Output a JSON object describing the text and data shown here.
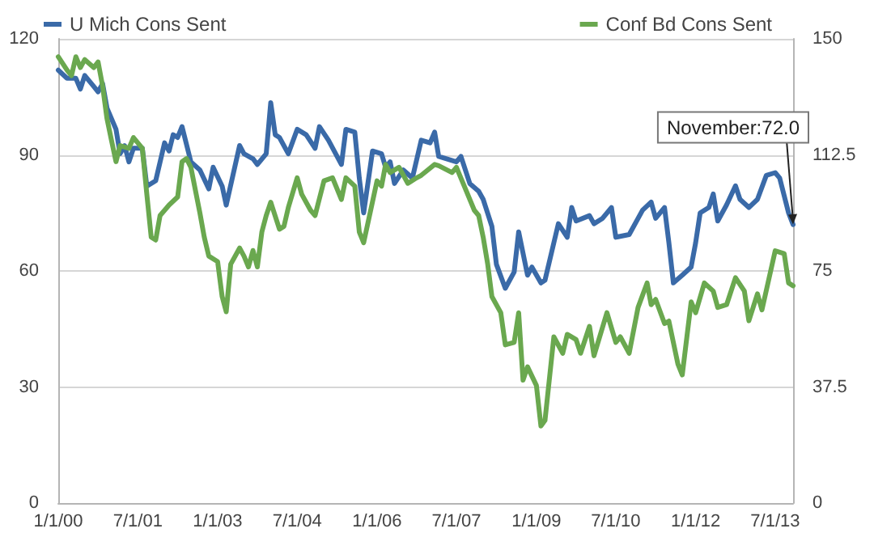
{
  "chart_data": {
    "type": "line",
    "xlim": [
      "2000-01",
      "2013-11"
    ],
    "xticks": [
      {
        "value": "2000-01-01",
        "label": "1/1/00"
      },
      {
        "value": "2001-07-01",
        "label": "7/1/01"
      },
      {
        "value": "2003-01-01",
        "label": "1/1/03"
      },
      {
        "value": "2004-07-01",
        "label": "7/1/04"
      },
      {
        "value": "2006-01-01",
        "label": "1/1/06"
      },
      {
        "value": "2007-07-01",
        "label": "7/1/07"
      },
      {
        "value": "2009-01-01",
        "label": "1/1/09"
      },
      {
        "value": "2010-07-01",
        "label": "7/1/10"
      },
      {
        "value": "2012-01-01",
        "label": "1/1/12"
      },
      {
        "value": "2013-07-01",
        "label": "7/1/13"
      }
    ],
    "ylim": [
      0,
      120
    ],
    "yticks": [
      0,
      30,
      60,
      90,
      120
    ],
    "y2lim": [
      0,
      150
    ],
    "y2ticks": [
      0,
      37.5,
      75,
      112.5,
      150
    ],
    "grid": "y",
    "legend": "top",
    "marker": "none",
    "line_style": "solid",
    "annotations": [
      {
        "text": "November:72.0",
        "x": "2013-11",
        "y": 72.0
      }
    ],
    "series": [
      {
        "name": "U Mich Cons Sent",
        "color": "#3a6aa8",
        "x": [
          "2000-01",
          "2000-03",
          "2000-05",
          "2000-06",
          "2000-07",
          "2000-09",
          "2000-10",
          "2000-11",
          "2000-12",
          "2001-02",
          "2001-03",
          "2001-04",
          "2001-05",
          "2001-06",
          "2001-08",
          "2001-09",
          "2001-11",
          "2002-01",
          "2002-02",
          "2002-03",
          "2002-04",
          "2002-05",
          "2002-07",
          "2002-09",
          "2002-11",
          "2002-12",
          "2003-02",
          "2003-03",
          "2003-06",
          "2003-07",
          "2003-09",
          "2003-10",
          "2003-12",
          "2004-01",
          "2004-02",
          "2004-03",
          "2004-05",
          "2004-07",
          "2004-09",
          "2004-11",
          "2004-12",
          "2005-02",
          "2005-05",
          "2005-06",
          "2005-08",
          "2005-09",
          "2005-10",
          "2005-12",
          "2006-02",
          "2006-03",
          "2006-04",
          "2006-05",
          "2006-07",
          "2006-09",
          "2006-11",
          "2007-01",
          "2007-02",
          "2007-03",
          "2007-07",
          "2007-08",
          "2007-10",
          "2007-12",
          "2008-01",
          "2008-03",
          "2008-04",
          "2008-06",
          "2008-08",
          "2008-09",
          "2008-11",
          "2008-12",
          "2009-02",
          "2009-03",
          "2009-05",
          "2009-06",
          "2009-08",
          "2009-09",
          "2009-10",
          "2010-01",
          "2010-02",
          "2010-04",
          "2010-06",
          "2010-07",
          "2010-10",
          "2011-01",
          "2011-03",
          "2011-04",
          "2011-06",
          "2011-07",
          "2011-08",
          "2011-10",
          "2011-12",
          "2012-01",
          "2012-02",
          "2012-04",
          "2012-05",
          "2012-06",
          "2012-08",
          "2012-10",
          "2012-11",
          "2013-01",
          "2013-03",
          "2013-05",
          "2013-07",
          "2013-08",
          "2013-10",
          "2013-11"
        ],
        "values": [
          111.9,
          109.8,
          109.8,
          107,
          110.5,
          107.7,
          106.3,
          108.4,
          102.1,
          96.6,
          90.3,
          92.4,
          88.2,
          91.7,
          91.7,
          81.9,
          83.3,
          93.1,
          91.0,
          95.2,
          94.5,
          97.3,
          88.2,
          86.1,
          81.2,
          86.8,
          81.9,
          77.0,
          92.4,
          90.3,
          89.0,
          87.5,
          90.3,
          103.5,
          95.2,
          94.5,
          90.3,
          96.6,
          95.2,
          91.7,
          97.3,
          93.8,
          87.5,
          96.6,
          95.9,
          84.0,
          75.0,
          91.0,
          90.3,
          86.8,
          88.2,
          82.6,
          86.1,
          84.0,
          93.8,
          93.1,
          95.9,
          89.6,
          88.2,
          89.6,
          82.6,
          80.6,
          78.5,
          71.5,
          61.7,
          55.5,
          59.7,
          70.1,
          58.9,
          61.0,
          56.9,
          57.6,
          67.3,
          72.2,
          68.7,
          76.4,
          72.9,
          74.3,
          72.2,
          73.6,
          76.4,
          68.7,
          69.4,
          75.7,
          77.8,
          73.6,
          76.4,
          67.3,
          56.9,
          58.9,
          61.0,
          67.3,
          75.0,
          76.4,
          79.9,
          72.9,
          77.1,
          82.0,
          78.5,
          76.4,
          78.5,
          84.7,
          85.4,
          84.0,
          75.0,
          72.0
        ]
      },
      {
        "name": "Conf Bd Cons Sent",
        "color": "#6aa84f",
        "axis": "y2",
        "x": [
          "2000-01",
          "2000-03",
          "2000-04",
          "2000-05",
          "2000-06",
          "2000-07",
          "2000-09",
          "2000-10",
          "2000-11",
          "2000-12",
          "2001-01",
          "2001-02",
          "2001-03",
          "2001-05",
          "2001-06",
          "2001-08",
          "2001-09",
          "2001-10",
          "2001-11",
          "2001-12",
          "2002-02",
          "2002-04",
          "2002-05",
          "2002-06",
          "2002-07",
          "2002-09",
          "2002-10",
          "2002-11",
          "2003-01",
          "2003-02",
          "2003-03",
          "2003-04",
          "2003-06",
          "2003-07",
          "2003-08",
          "2003-09",
          "2003-10",
          "2003-11",
          "2003-12",
          "2004-01",
          "2004-03",
          "2004-04",
          "2004-05",
          "2004-07",
          "2004-08",
          "2004-10",
          "2004-11",
          "2005-01",
          "2005-03",
          "2005-05",
          "2005-06",
          "2005-08",
          "2005-09",
          "2005-10",
          "2006-01",
          "2006-02",
          "2006-03",
          "2006-04",
          "2006-06",
          "2006-08",
          "2006-10",
          "2006-11",
          "2007-02",
          "2007-03",
          "2007-06",
          "2007-07",
          "2007-09",
          "2007-11",
          "2007-12",
          "2008-01",
          "2008-02",
          "2008-03",
          "2008-05",
          "2008-06",
          "2008-08",
          "2008-09",
          "2008-10",
          "2008-11",
          "2009-01",
          "2009-02",
          "2009-03",
          "2009-05",
          "2009-07",
          "2009-08",
          "2009-10",
          "2009-11",
          "2010-01",
          "2010-02",
          "2010-05",
          "2010-07",
          "2010-08",
          "2010-10",
          "2010-12",
          "2011-02",
          "2011-03",
          "2011-04",
          "2011-06",
          "2011-07",
          "2011-09",
          "2011-10",
          "2011-12",
          "2012-01",
          "2012-03",
          "2012-05",
          "2012-06",
          "2012-08",
          "2012-10",
          "2012-12",
          "2013-01",
          "2013-03",
          "2013-04",
          "2013-07",
          "2013-09",
          "2013-10",
          "2013-11"
        ],
        "values": [
          144.2,
          139.9,
          138.1,
          144.2,
          140.7,
          143.3,
          140.7,
          142.5,
          134.7,
          124.2,
          117.2,
          110.3,
          115.5,
          114.6,
          118.1,
          114.6,
          99.8,
          85.9,
          85.0,
          92.9,
          96.3,
          98.9,
          110.3,
          111.3,
          108.5,
          93.7,
          85.9,
          79.8,
          78.0,
          66.7,
          61.8,
          77.2,
          82.4,
          79.8,
          76.3,
          81.6,
          76.3,
          87.6,
          92.9,
          97.2,
          88.5,
          89.4,
          95.5,
          105.1,
          99.8,
          94.6,
          92.9,
          104.1,
          105.1,
          98.1,
          105.1,
          102.4,
          87.6,
          84.1,
          104.1,
          102.4,
          109.4,
          106.8,
          108.5,
          103.3,
          105.1,
          105.9,
          109.4,
          109.0,
          106.8,
          108.5,
          101.5,
          94.6,
          92.9,
          85.9,
          77.2,
          66.7,
          61.5,
          51.1,
          51.9,
          61.5,
          39.7,
          44.0,
          38.0,
          24.9,
          26.7,
          53.7,
          48.4,
          54.5,
          52.8,
          48.4,
          57.1,
          47.6,
          61.5,
          51.9,
          53.7,
          48.4,
          63.2,
          71.1,
          64.1,
          65.8,
          58.0,
          58.8,
          44.9,
          41.4,
          65.0,
          61.5,
          71.1,
          68.5,
          63.2,
          64.1,
          72.8,
          68.5,
          58.9,
          67.6,
          62.4,
          81.5,
          80.6,
          71.1,
          70.2
        ]
      }
    ]
  }
}
